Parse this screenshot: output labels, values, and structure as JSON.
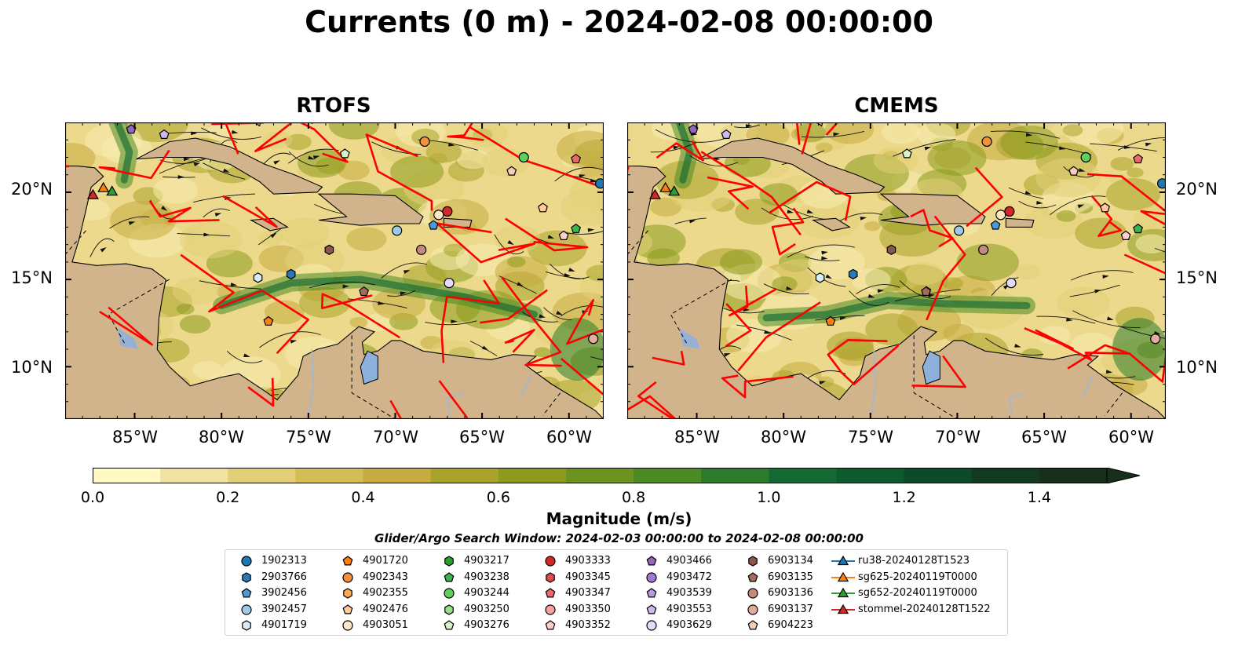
{
  "title": "Currents (0 m) - 2024-02-08 00:00:00",
  "panels": [
    {
      "title": "RTOFS"
    },
    {
      "title": "CMEMS"
    }
  ],
  "lat_labels": [
    "20°N",
    "15°N",
    "10°N"
  ],
  "lon_labels": [
    "85°W",
    "80°W",
    "75°W",
    "70°W",
    "65°W",
    "60°W"
  ],
  "map_extent": {
    "lon": [
      -89.0,
      -58.0
    ],
    "lat": [
      7.0,
      24.0
    ]
  },
  "colorbar": {
    "label": "Magnitude (m/s)",
    "range": [
      0.0,
      1.5
    ],
    "extend": "max",
    "ticks": [
      "0.0",
      "0.2",
      "0.4",
      "0.6",
      "0.8",
      "1.0",
      "1.2",
      "1.4"
    ],
    "colors": [
      "#fff9c4",
      "#f0e2a0",
      "#e2cf78",
      "#d4bc57",
      "#c6ac40",
      "#a9a329",
      "#8c9b1d",
      "#6c9220",
      "#4c8a25",
      "#2c7b2c",
      "#146a33",
      "#0d5a2f",
      "#0d4a27",
      "#123a20",
      "#18301a"
    ]
  },
  "subtitle": "Glider/Argo Search Window: 2024-02-03 00:00:00 to 2024-02-08 00:00:00",
  "colors": {
    "land": "#d2b48c",
    "tracks": "#ff0000",
    "lakes": "#8eb0dd",
    "rivers": "#9fb8d8"
  },
  "legend": [
    {
      "label": "1902313",
      "marker": "circle",
      "color": "#1f77b4"
    },
    {
      "label": "2903766",
      "marker": "hexagon",
      "color": "#2a78b5"
    },
    {
      "label": "3902456",
      "marker": "pentagon",
      "color": "#4a98d6"
    },
    {
      "label": "3902457",
      "marker": "circle",
      "color": "#9ecae9"
    },
    {
      "label": "4901719",
      "marker": "hexagon",
      "color": "#d6ecfa"
    },
    {
      "label": "4901720",
      "marker": "pentagon",
      "color": "#ff7f0e"
    },
    {
      "label": "4902343",
      "marker": "circle",
      "color": "#f2913d"
    },
    {
      "label": "4902355",
      "marker": "hexagon",
      "color": "#ffa75b"
    },
    {
      "label": "4902476",
      "marker": "pentagon",
      "color": "#ffcc99"
    },
    {
      "label": "4903051",
      "marker": "circle",
      "color": "#ffe5c7"
    },
    {
      "label": "4903217",
      "marker": "hexagon",
      "color": "#2ca02c"
    },
    {
      "label": "4903238",
      "marker": "pentagon",
      "color": "#3cb44b"
    },
    {
      "label": "4903244",
      "marker": "circle",
      "color": "#5fcf5f"
    },
    {
      "label": "4903250",
      "marker": "hexagon",
      "color": "#98df8a"
    },
    {
      "label": "4903276",
      "marker": "pentagon",
      "color": "#d6f5c9"
    },
    {
      "label": "4903333",
      "marker": "circle",
      "color": "#d62728"
    },
    {
      "label": "4903345",
      "marker": "hexagon",
      "color": "#e04a4a"
    },
    {
      "label": "4903347",
      "marker": "pentagon",
      "color": "#ec6a6a"
    },
    {
      "label": "4903350",
      "marker": "circle",
      "color": "#f7a1a1"
    },
    {
      "label": "4903352",
      "marker": "pentagon",
      "color": "#fdd0d0"
    },
    {
      "label": "4903466",
      "marker": "pentagon",
      "color": "#9467bd"
    },
    {
      "label": "4903472",
      "marker": "circle",
      "color": "#a07ad0"
    },
    {
      "label": "4903539",
      "marker": "pentagon",
      "color": "#b79be0"
    },
    {
      "label": "4903553",
      "marker": "pentagon",
      "color": "#cdb8ef"
    },
    {
      "label": "4903629",
      "marker": "circle",
      "color": "#e6d9fb"
    },
    {
      "label": "6903134",
      "marker": "hexagon",
      "color": "#8c564b"
    },
    {
      "label": "6903135",
      "marker": "pentagon",
      "color": "#a46a5d"
    },
    {
      "label": "6903136",
      "marker": "circle",
      "color": "#c48b7c"
    },
    {
      "label": "6903137",
      "marker": "circle",
      "color": "#e2aba0"
    },
    {
      "label": "6904223",
      "marker": "pentagon",
      "color": "#f7cdb7"
    },
    {
      "label": "ru38-20240128T1523",
      "marker": "triangle-line",
      "color": "#1f77b4"
    },
    {
      "label": "sg625-20240119T0000",
      "marker": "triangle-line",
      "color": "#ff7f0e"
    },
    {
      "label": "sg652-20240119T0000",
      "marker": "triangle-line",
      "color": "#2ca02c"
    },
    {
      "label": "stommel-20240128T1522",
      "marker": "triangle-line",
      "color": "#d62728"
    }
  ],
  "float_positions": [
    {
      "id": "4903466",
      "lon": -85.2,
      "lat": 23.6
    },
    {
      "id": "4903553",
      "lon": -83.3,
      "lat": 23.3
    },
    {
      "id": "stommel-20240128T1522",
      "lon": -87.4,
      "lat": 19.8
    },
    {
      "id": "sg625-20240119T0000",
      "lon": -86.8,
      "lat": 20.2
    },
    {
      "id": "sg652-20240119T0000",
      "lon": -86.3,
      "lat": 20.0
    },
    {
      "id": "4903276",
      "lon": -72.9,
      "lat": 22.2
    },
    {
      "id": "4902343",
      "lon": -68.3,
      "lat": 22.9
    },
    {
      "id": "4903244",
      "lon": -62.6,
      "lat": 22.0
    },
    {
      "id": "6904223",
      "lon": -63.3,
      "lat": 21.2
    },
    {
      "id": "4903347",
      "lon": -59.6,
      "lat": 21.9
    },
    {
      "id": "1902313",
      "lon": -58.2,
      "lat": 20.5
    },
    {
      "id": "4903333",
      "lon": -67.0,
      "lat": 18.9
    },
    {
      "id": "4903051",
      "lon": -67.5,
      "lat": 18.7
    },
    {
      "id": "4902476",
      "lon": -61.5,
      "lat": 19.1
    },
    {
      "id": "3902457",
      "lon": -69.9,
      "lat": 17.8
    },
    {
      "id": "3902456",
      "lon": -67.8,
      "lat": 18.1
    },
    {
      "id": "4903238",
      "lon": -59.6,
      "lat": 17.9
    },
    {
      "id": "4903352",
      "lon": -60.3,
      "lat": 17.5
    },
    {
      "id": "6903134",
      "lon": -73.8,
      "lat": 16.7
    },
    {
      "id": "6903136",
      "lon": -68.5,
      "lat": 16.7
    },
    {
      "id": "4901719",
      "lon": -77.9,
      "lat": 15.1
    },
    {
      "id": "2903766",
      "lon": -76.0,
      "lat": 15.3
    },
    {
      "id": "4903629",
      "lon": -66.9,
      "lat": 14.8
    },
    {
      "id": "6903135",
      "lon": -71.8,
      "lat": 14.3
    },
    {
      "id": "4901720",
      "lon": -77.3,
      "lat": 12.6
    },
    {
      "id": "6903137",
      "lon": -58.6,
      "lat": 11.6
    }
  ]
}
